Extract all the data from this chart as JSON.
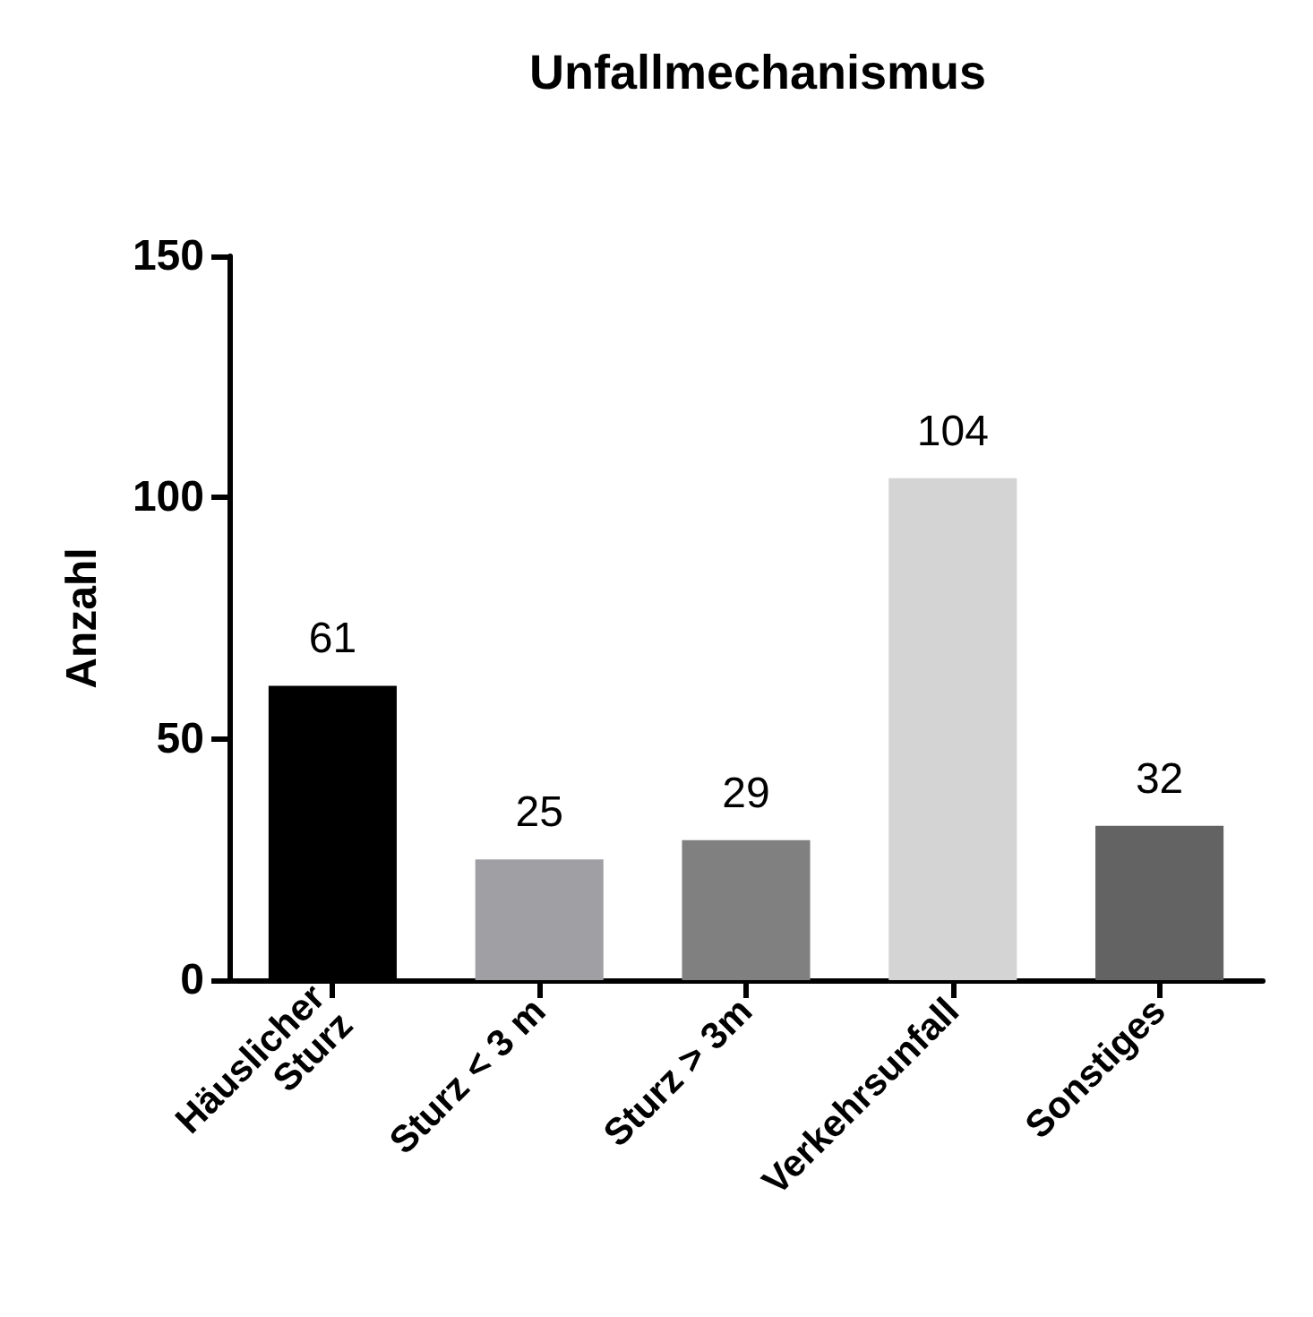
{
  "chart_data": {
    "type": "bar",
    "title": "Unfallmechanismus",
    "ylabel": "Anzahl",
    "categories": [
      "Häuslicher\nSturz",
      "Sturz < 3 m",
      "Sturz > 3m",
      "Verkehrsunfall",
      "Sonstiges"
    ],
    "values": [
      61,
      25,
      29,
      104,
      32
    ],
    "colors": [
      "#000000",
      "#a0a0a4",
      "#808080",
      "#d4d4d4",
      "#636363"
    ],
    "ylim": [
      0,
      150
    ],
    "yticks": [
      0,
      50,
      100,
      150
    ],
    "grid": false,
    "data_labels": true
  }
}
